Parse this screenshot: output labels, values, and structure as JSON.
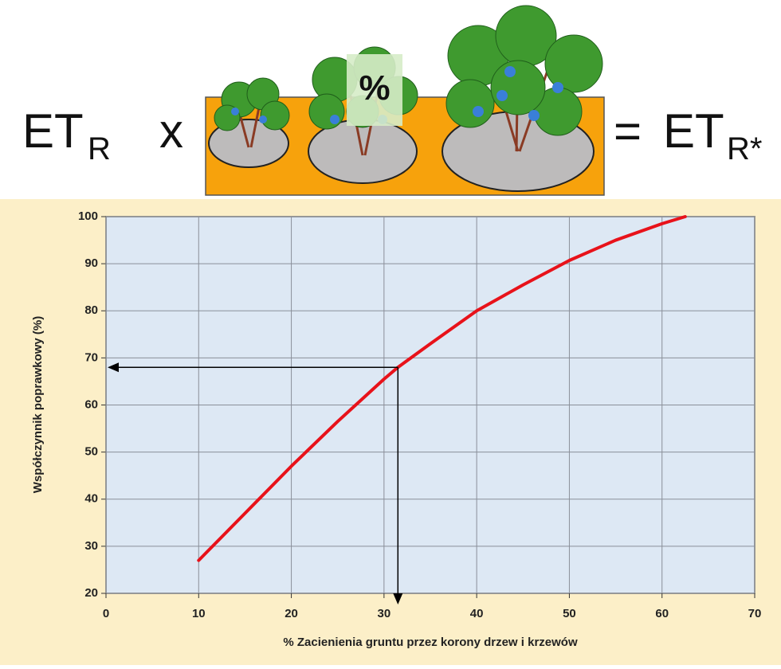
{
  "header": {
    "left_base": "ET",
    "left_sub": "R",
    "operator": "x",
    "badge": "%",
    "equals": "=",
    "right_base": "ET",
    "right_sub": "R*"
  },
  "chart_data": {
    "type": "line",
    "x_label": "% Zacienienia gruntu przez korony drzew i krzewów",
    "y_label": "Współczynnik  poprawkowy (%)",
    "x": [
      10,
      15,
      20,
      25,
      30,
      31.5,
      35,
      40,
      45,
      50,
      55,
      60,
      62.5
    ],
    "series": [
      {
        "color": "#e8121a",
        "values": [
          27,
          37,
          47,
          56.5,
          65.5,
          68,
          73,
          80,
          85.5,
          90.7,
          95,
          98.5,
          100
        ]
      }
    ],
    "annotation_point": {
      "x": 31.5,
      "y": 68
    },
    "xlim": [
      0,
      70
    ],
    "ylim": [
      20,
      100
    ],
    "xticks": [
      0,
      10,
      20,
      30,
      40,
      50,
      60,
      70
    ],
    "yticks": [
      20,
      30,
      40,
      50,
      60,
      70,
      80,
      90,
      100
    ],
    "grid": true
  }
}
